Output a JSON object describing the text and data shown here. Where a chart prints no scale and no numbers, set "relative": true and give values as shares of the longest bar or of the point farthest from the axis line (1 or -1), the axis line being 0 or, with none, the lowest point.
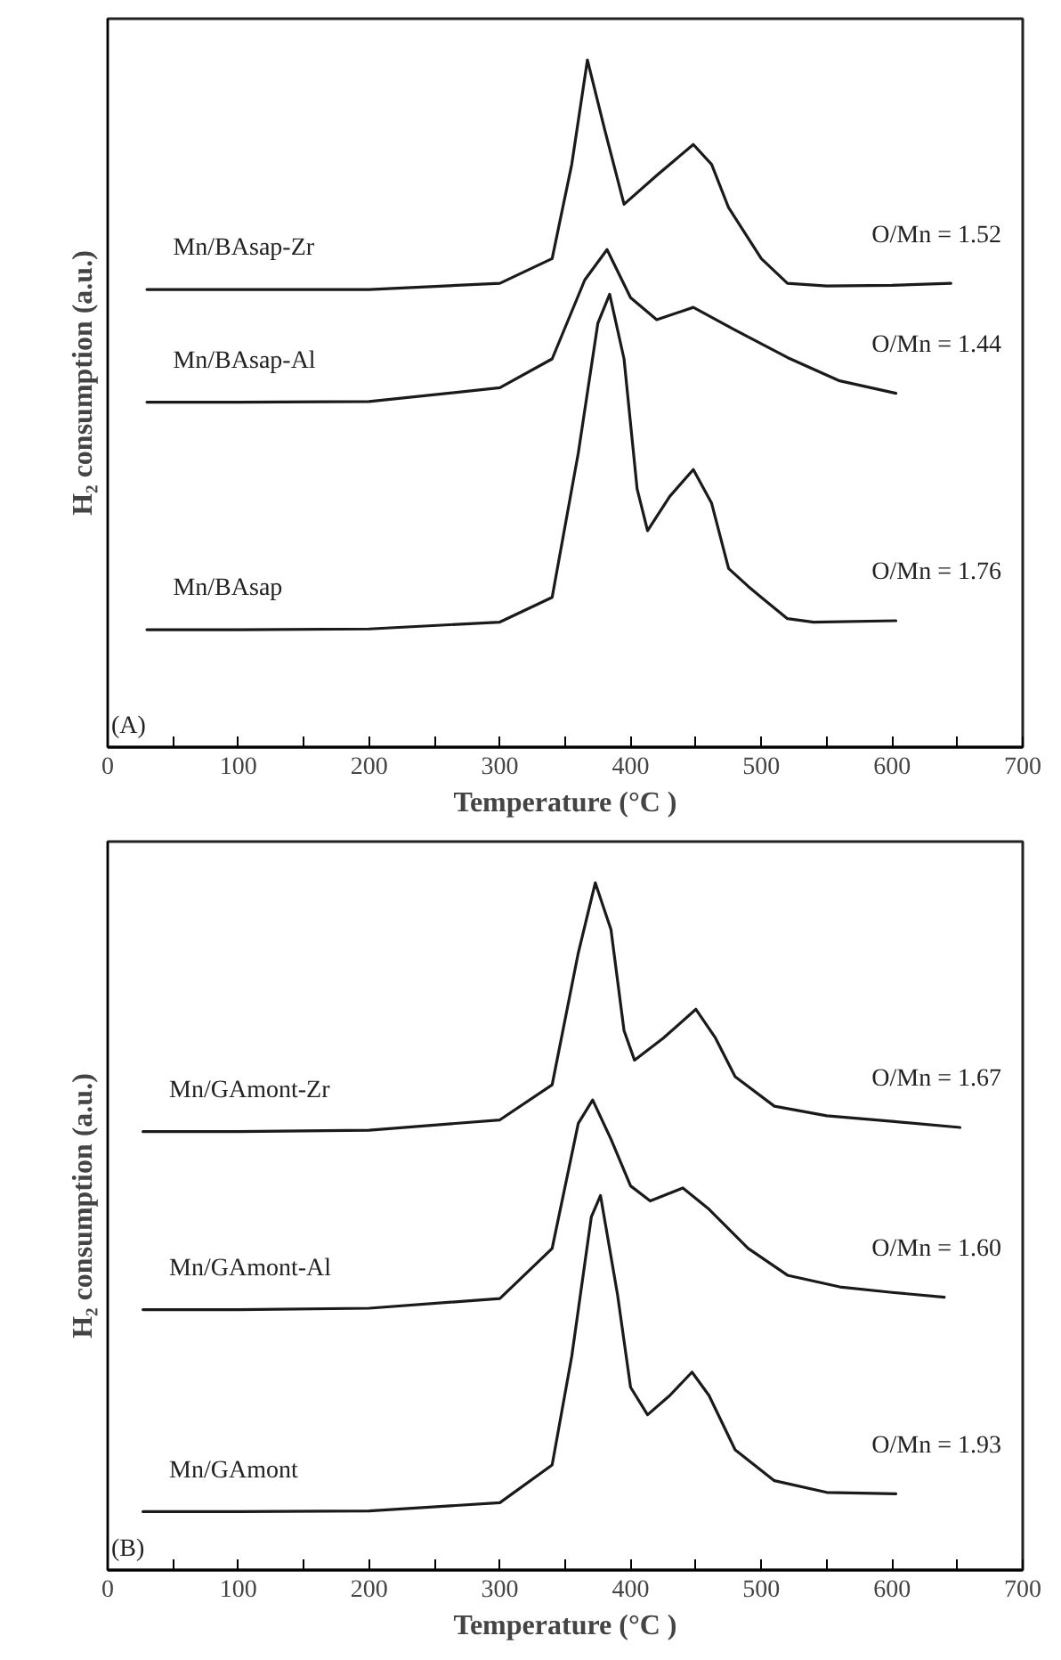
{
  "chart_data": [
    {
      "type": "line",
      "relative": true,
      "xlabel": "Temperature (°C )",
      "ylabel": "H₂ consumption (a.u.)",
      "xlim": [
        0,
        700
      ],
      "xticks": [
        0,
        {
          "value": 50,
          "label": null
        },
        100,
        {
          "value": 150,
          "label": null
        },
        200,
        {
          "value": 250,
          "label": null
        },
        300,
        {
          "value": 350,
          "label": null
        },
        400,
        {
          "value": 450,
          "label": null
        },
        500,
        {
          "value": 550,
          "label": null
        },
        600,
        {
          "value": 650,
          "label": null
        },
        700
      ],
      "grid": false,
      "series": [
        {
          "name": "Mn/BAsap-Zr",
          "color": "#1a1a1a",
          "x": [
            30,
            100,
            200,
            300,
            340,
            355,
            367,
            380,
            395,
            420,
            448,
            462,
            475,
            500,
            520,
            550,
            600,
            645
          ],
          "values": [
            0.666,
            0.666,
            0.666,
            0.675,
            0.711,
            0.848,
            1.0,
            0.9,
            0.79,
            0.832,
            0.877,
            0.848,
            0.785,
            0.711,
            0.675,
            0.671,
            0.672,
            0.675
          ]
        },
        {
          "name": "Mn/BAsap-Al",
          "color": "#1a1a1a",
          "x": [
            30,
            100,
            200,
            300,
            340,
            365,
            382,
            400,
            420,
            448,
            480,
            520,
            560,
            603
          ],
          "values": [
            0.502,
            0.502,
            0.503,
            0.523,
            0.565,
            0.68,
            0.724,
            0.654,
            0.622,
            0.64,
            0.607,
            0.567,
            0.533,
            0.515
          ]
        },
        {
          "name": "Mn/BAsap",
          "color": "#1a1a1a",
          "x": [
            30,
            100,
            200,
            300,
            340,
            360,
            375,
            384,
            395,
            405,
            413,
            430,
            448,
            462,
            475,
            490,
            500,
            520,
            540,
            603
          ],
          "values": [
            0.171,
            0.171,
            0.172,
            0.182,
            0.218,
            0.428,
            0.617,
            0.659,
            0.565,
            0.376,
            0.315,
            0.365,
            0.404,
            0.355,
            0.26,
            0.234,
            0.218,
            0.187,
            0.182,
            0.184
          ]
        }
      ],
      "annotations": [
        "O/Mn = 1.52",
        "O/Mn = 1.44",
        "O/Mn = 1.76",
        "(A)"
      ]
    },
    {
      "type": "line",
      "relative": true,
      "xlabel": "Temperature (°C )",
      "ylabel": "H₂ consumption (a.u.)",
      "xlim": [
        0,
        700
      ],
      "xticks": [
        0,
        {
          "value": 50,
          "label": null
        },
        100,
        {
          "value": 150,
          "label": null
        },
        200,
        {
          "value": 250,
          "label": null
        },
        300,
        {
          "value": 350,
          "label": null
        },
        400,
        {
          "value": 450,
          "label": null
        },
        500,
        {
          "value": 550,
          "label": null
        },
        600,
        {
          "value": 650,
          "label": null
        },
        700
      ],
      "grid": false,
      "series": [
        {
          "name": "Mn/GAmont-Zr",
          "color": "#1a1a1a",
          "x": [
            27,
            100,
            200,
            300,
            340,
            360,
            373,
            385,
            395,
            403,
            425,
            450,
            465,
            480,
            510,
            550,
            600,
            652
          ],
          "values": [
            0.638,
            0.638,
            0.64,
            0.655,
            0.706,
            0.898,
            1.0,
            0.932,
            0.785,
            0.742,
            0.774,
            0.816,
            0.774,
            0.718,
            0.675,
            0.661,
            0.653,
            0.644
          ]
        },
        {
          "name": "Mn/GAmont-Al",
          "color": "#1a1a1a",
          "x": [
            27,
            100,
            200,
            300,
            340,
            360,
            371,
            385,
            400,
            415,
            440,
            460,
            490,
            520,
            560,
            600,
            640
          ],
          "values": [
            0.379,
            0.379,
            0.381,
            0.395,
            0.468,
            0.65,
            0.684,
            0.627,
            0.559,
            0.537,
            0.556,
            0.525,
            0.468,
            0.429,
            0.412,
            0.404,
            0.397
          ]
        },
        {
          "name": "Mn/GAmont",
          "color": "#1a1a1a",
          "x": [
            27,
            100,
            200,
            300,
            340,
            355,
            370,
            377,
            390,
            400,
            413,
            430,
            447,
            460,
            480,
            510,
            550,
            603
          ],
          "values": [
            0.085,
            0.085,
            0.086,
            0.098,
            0.153,
            0.311,
            0.514,
            0.545,
            0.401,
            0.266,
            0.226,
            0.254,
            0.288,
            0.254,
            0.175,
            0.13,
            0.113,
            0.111
          ]
        }
      ],
      "annotations": [
        "O/Mn = 1.67",
        "O/Mn = 1.60",
        "O/Mn = 1.93",
        "(B)"
      ]
    }
  ]
}
